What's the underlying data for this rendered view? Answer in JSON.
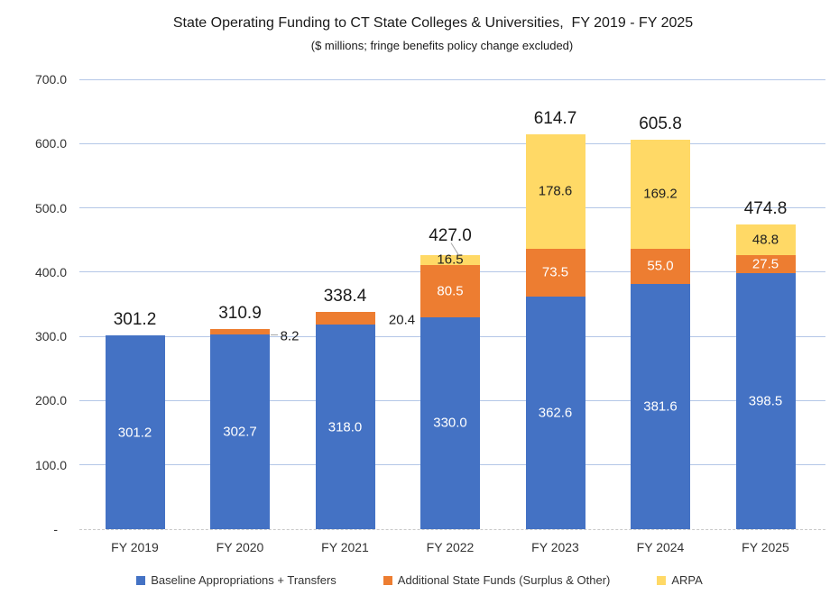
{
  "chart_data": {
    "type": "bar",
    "stacked": true,
    "title": "State Operating Funding to CT State Colleges & Universities,  FY 2019 - FY 2025",
    "subtitle": "($ millions; fringe benefits policy change excluded)",
    "categories": [
      "FY 2019",
      "FY 2020",
      "FY 2021",
      "FY 2022",
      "FY 2023",
      "FY 2024",
      "FY 2025"
    ],
    "series": [
      {
        "name": "Baseline Appropriations + Transfers",
        "color": "#4472C4",
        "values": [
          301.2,
          302.7,
          318.0,
          330.0,
          362.6,
          381.6,
          398.5
        ]
      },
      {
        "name": "Additional State Funds (Surplus & Other)",
        "color": "#ED7D31",
        "values": [
          0,
          8.2,
          20.4,
          80.5,
          73.5,
          55.0,
          27.5
        ]
      },
      {
        "name": "ARPA",
        "color": "#FFD966",
        "values": [
          0,
          0,
          0,
          16.5,
          178.6,
          169.2,
          48.8
        ]
      }
    ],
    "totals": [
      301.2,
      310.9,
      338.4,
      427.0,
      614.7,
      605.8,
      474.8
    ],
    "y_axis": {
      "min": 0,
      "max": 700,
      "ticks": [
        {
          "value": 700,
          "label": "700.0"
        },
        {
          "value": 600,
          "label": "600.0"
        },
        {
          "value": 500,
          "label": "500.0"
        },
        {
          "value": 400,
          "label": "400.0"
        },
        {
          "value": 300,
          "label": "300.0"
        },
        {
          "value": 200,
          "label": "200.0"
        },
        {
          "value": 100,
          "label": "100.0"
        },
        {
          "value": 0,
          "label": "-"
        }
      ]
    },
    "grid": true,
    "legend_position": "bottom",
    "style": {
      "gridline_color": "#B4C7E7",
      "axis_line_color": "#C9C9C9",
      "axis_text_color": "#333333",
      "total_label_color": "#1a1a1a",
      "inside_label_light": "#FFFFFF",
      "inside_label_dark": "#1f1f1f",
      "leader_line_color": "#A6A6A6"
    }
  }
}
